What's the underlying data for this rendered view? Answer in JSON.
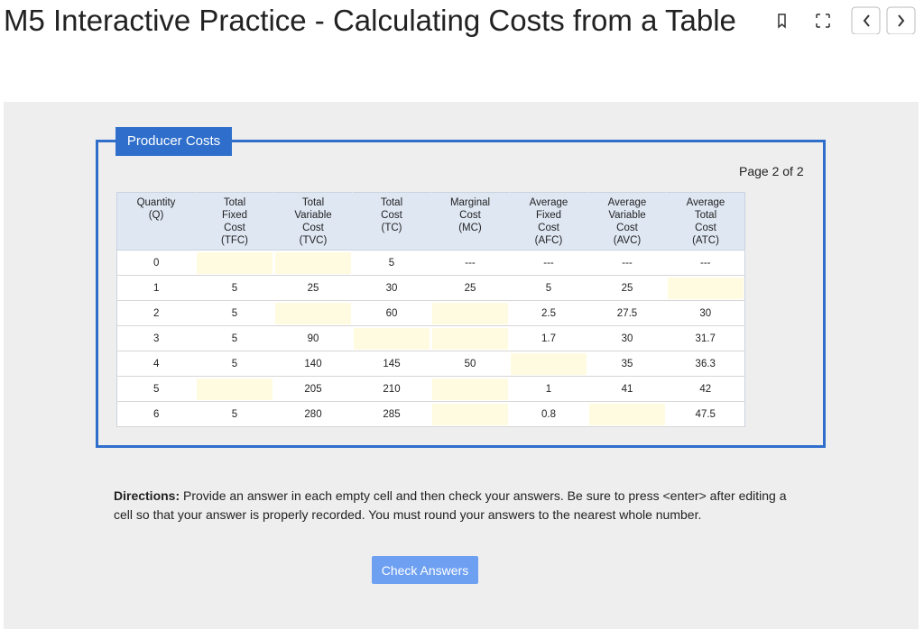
{
  "header": {
    "title": "M5 Interactive Practice - Calculating Costs from a Table"
  },
  "panel": {
    "legend": "Producer Costs",
    "page": "Page 2 of 2"
  },
  "table": {
    "headers": [
      "Quantity\n(Q)",
      "Total\nFixed\nCost\n(TFC)",
      "Total\nVariable\nCost\n(TVC)",
      "Total\nCost\n(TC)",
      "Marginal\nCost\n(MC)",
      "Average\nFixed\nCost\n(AFC)",
      "Average\nVariable\nCost\n(AVC)",
      "Average\nTotal\nCost\n(ATC)"
    ],
    "rows": [
      [
        0,
        null,
        null,
        5,
        "---",
        "---",
        "---",
        "---"
      ],
      [
        1,
        5,
        25,
        30,
        25,
        5,
        25,
        null
      ],
      [
        2,
        5,
        null,
        60,
        null,
        2.5,
        27.5,
        30
      ],
      [
        3,
        5,
        90,
        null,
        null,
        1.7,
        30,
        31.7
      ],
      [
        4,
        5,
        140,
        145,
        50,
        null,
        35,
        36.3
      ],
      [
        5,
        null,
        205,
        210,
        null,
        1,
        41,
        42
      ],
      [
        6,
        5,
        280,
        285,
        null,
        0.8,
        null,
        47.5
      ]
    ]
  },
  "directions": {
    "label": "Directions:",
    "text": " Provide an answer in each empty cell and then check your answers. Be sure to press <enter> after editing a cell so that your answer is properly recorded. You must round your answers to the nearest whole number."
  },
  "button": "Check Answers"
}
